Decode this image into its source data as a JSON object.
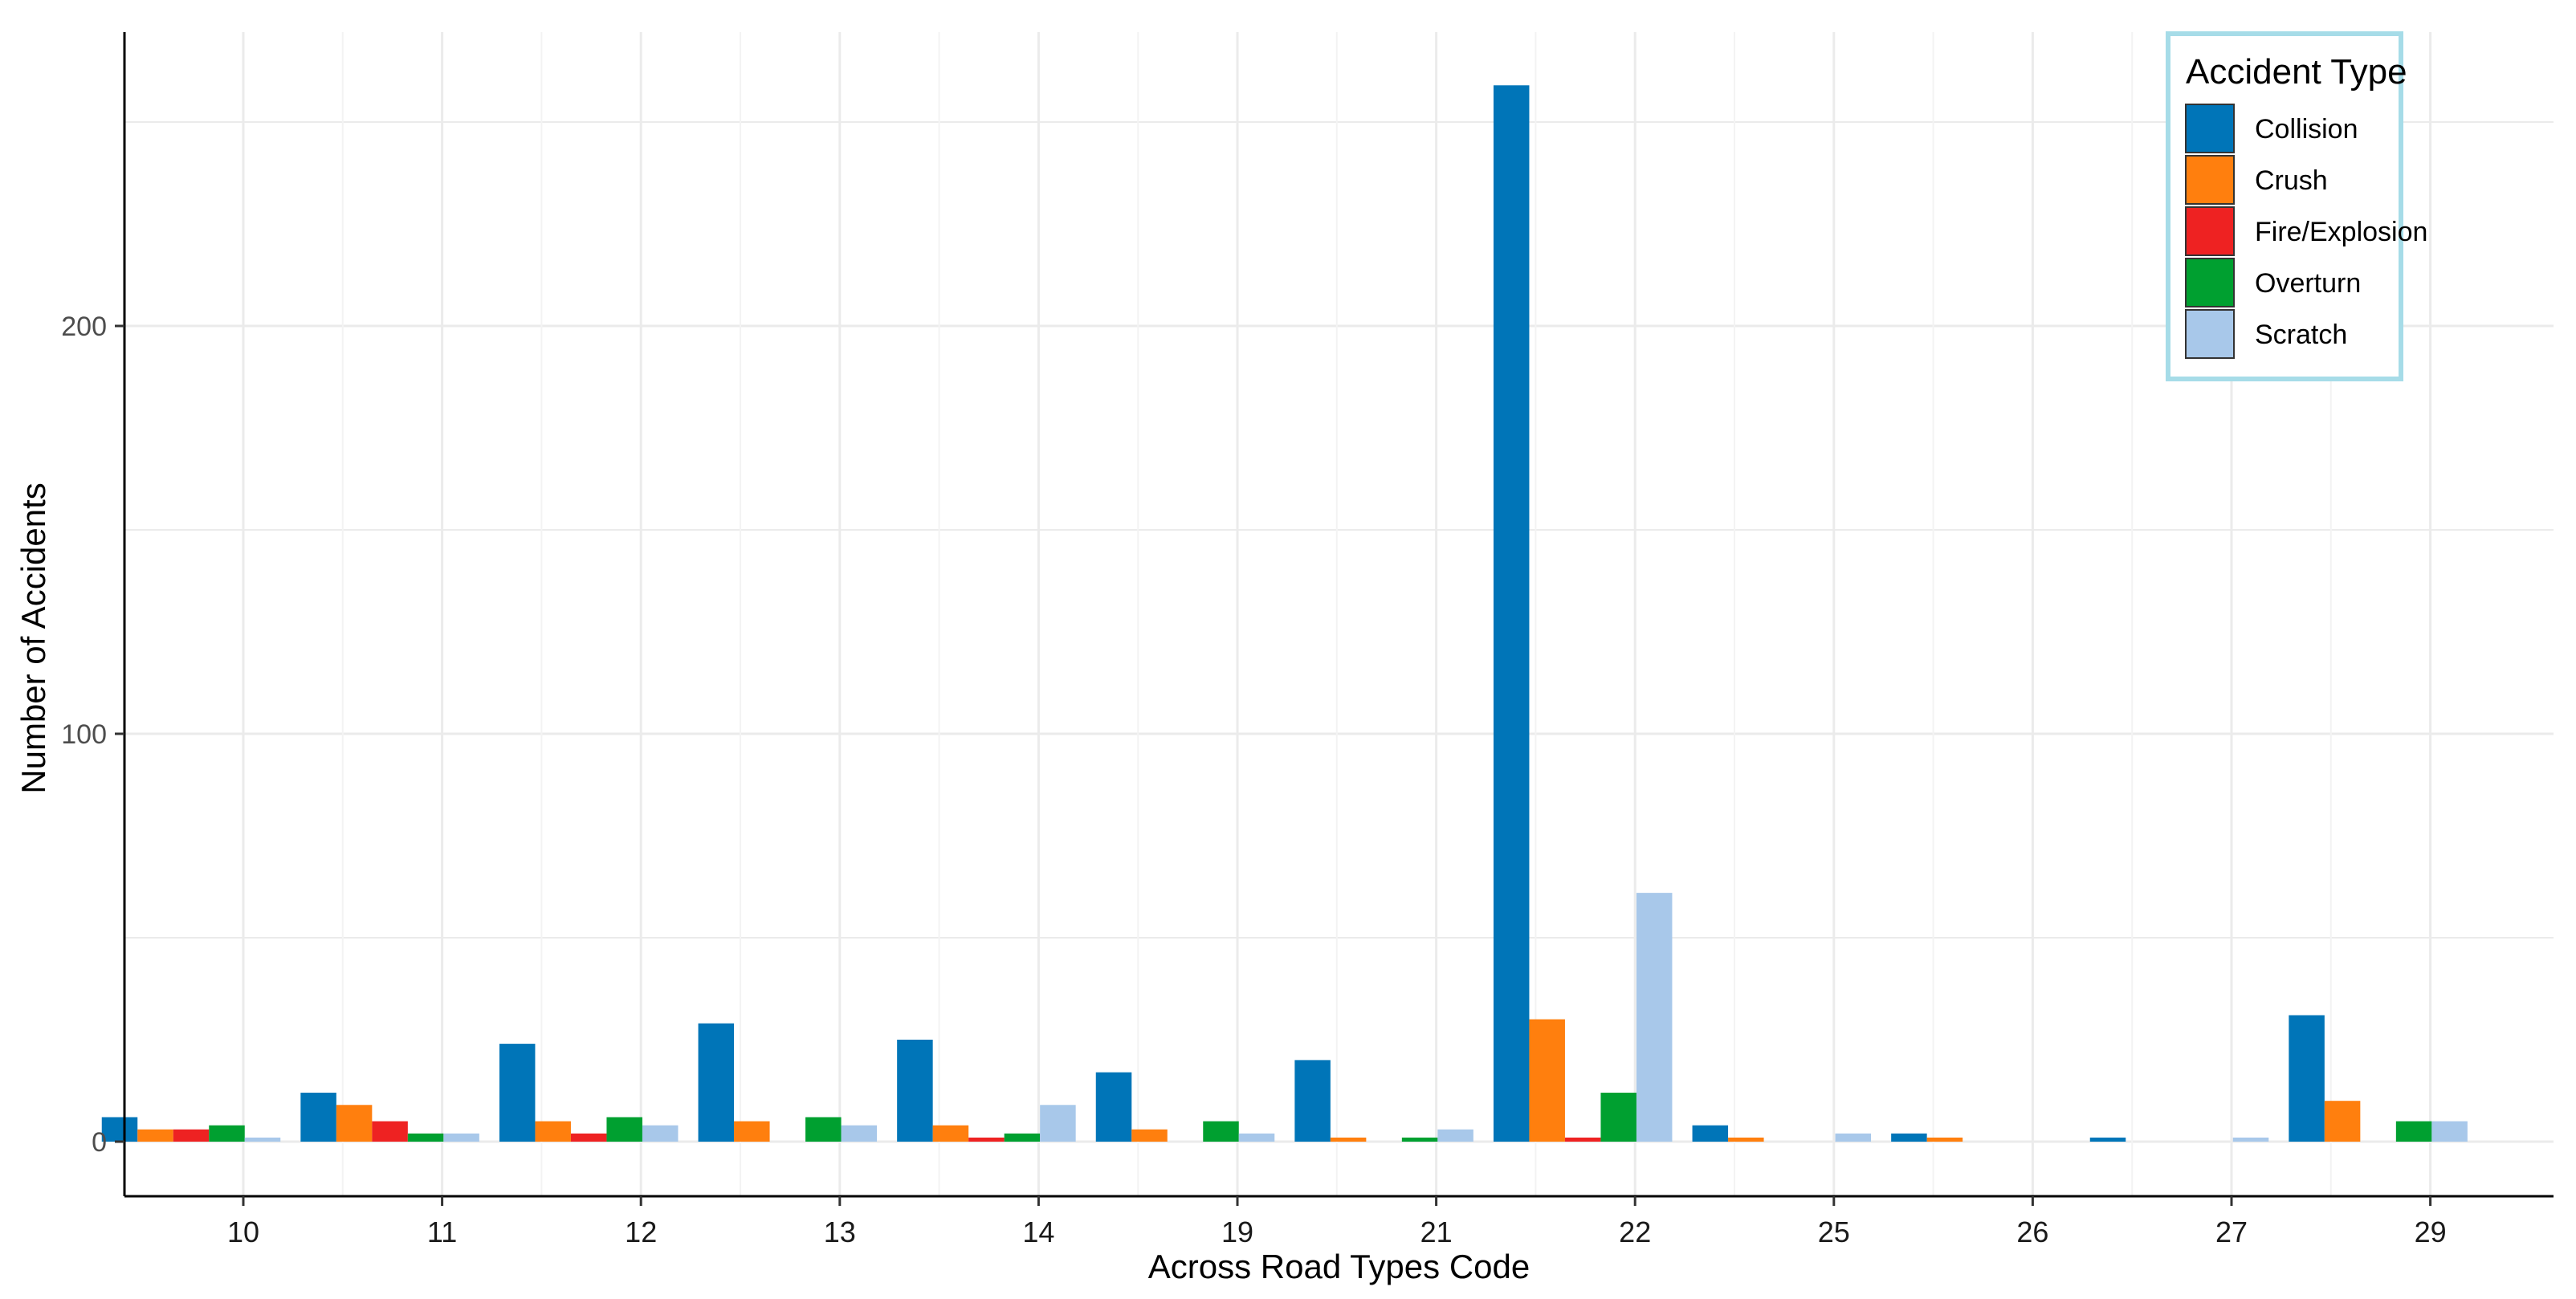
{
  "chart_data": {
    "type": "bar",
    "xlabel": "Across Road Types Code",
    "ylabel": "Number of Accidents",
    "categories": [
      "10",
      "11",
      "12",
      "13",
      "14",
      "19",
      "21",
      "22",
      "25",
      "26",
      "27",
      "29"
    ],
    "ylim": [
      -13,
      260
    ],
    "y_ticks": [
      "0",
      "100",
      "200"
    ],
    "grid": true,
    "legend": {
      "title": "Accident Type",
      "placement": "top-right",
      "border_color": "#a6dce8"
    },
    "series": [
      {
        "name": "Collision",
        "color": "#0075b8",
        "values": [
          6,
          12,
          24,
          29,
          25,
          17,
          20,
          259,
          4,
          2,
          1,
          31
        ]
      },
      {
        "name": "Crush",
        "color": "#ff7f0e",
        "values": [
          3,
          9,
          5,
          5,
          4,
          3,
          1,
          30,
          1,
          1,
          null,
          10
        ]
      },
      {
        "name": "Fire/Explosion",
        "color": "#ee2222",
        "values": [
          3,
          5,
          2,
          null,
          1,
          null,
          null,
          1,
          null,
          null,
          null,
          null
        ]
      },
      {
        "name": "Overturn",
        "color": "#00a030",
        "values": [
          4,
          2,
          6,
          6,
          2,
          5,
          1,
          12,
          null,
          null,
          null,
          5
        ]
      },
      {
        "name": "Scratch",
        "color": "#a8c8ea",
        "values": [
          1,
          2,
          4,
          4,
          9,
          2,
          3,
          61,
          2,
          null,
          1,
          5
        ]
      }
    ]
  }
}
